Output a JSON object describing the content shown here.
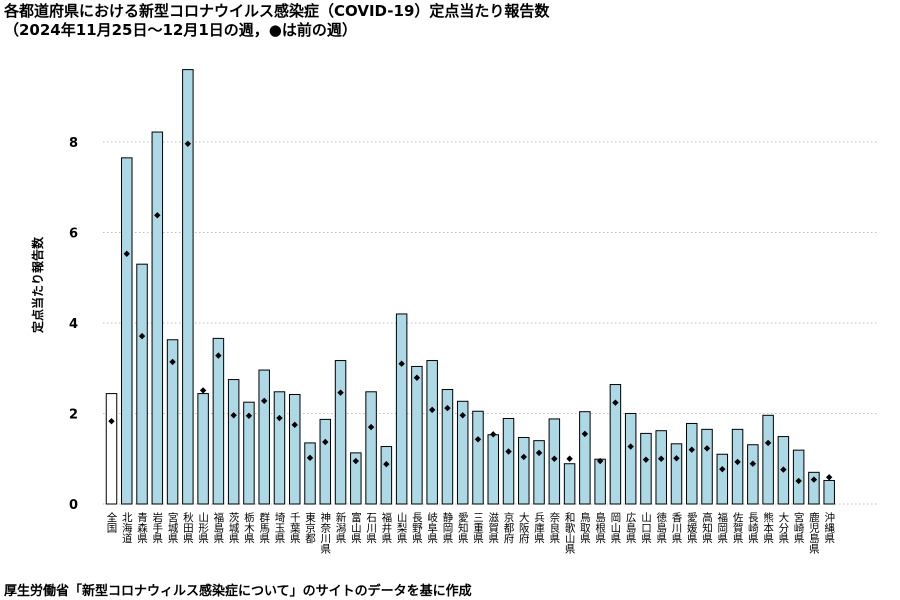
{
  "header": {
    "title": "各都道府県における新型コロナウイルス感染症（COVID-19）定点当たり報告数",
    "subtitle": "（2024年11月25日〜12月1日の週，●は前の週）"
  },
  "footnote": "厚生労働省「新型コロナウィルス感染症について」のサイトのデータを基に作成",
  "chart_data": {
    "type": "bar",
    "title": "各都道府県における新型コロナウイルス感染症（COVID-19）定点当たり報告数",
    "subtitle": "（2024年11月25日〜12月1日の週，●は前の週）",
    "ylabel": "定点当たり報告数",
    "xlabel": "",
    "ylim": [
      0,
      9.8
    ],
    "yticks": [
      0,
      2,
      4,
      6,
      8
    ],
    "grid": "horizontal-dotted",
    "categories": [
      "全国",
      "北海道",
      "青森県",
      "岩手県",
      "宮城県",
      "秋田県",
      "山形県",
      "福島県",
      "茨城県",
      "栃木県",
      "群馬県",
      "埼玉県",
      "千葉県",
      "東京都",
      "神奈川県",
      "新潟県",
      "富山県",
      "石川県",
      "福井県",
      "山梨県",
      "長野県",
      "岐阜県",
      "静岡県",
      "愛知県",
      "三重県",
      "滋賀県",
      "京都府",
      "大阪府",
      "兵庫県",
      "奈良県",
      "和歌山県",
      "鳥取県",
      "島根県",
      "岡山県",
      "広島県",
      "山口県",
      "徳島県",
      "香川県",
      "愛媛県",
      "高知県",
      "福岡県",
      "佐賀県",
      "長崎県",
      "熊本県",
      "大分県",
      "宮崎県",
      "鹿児島県",
      "沖縄県"
    ],
    "series": [
      {
        "values": [
          2.44,
          7.65,
          5.3,
          8.22,
          3.63,
          9.6,
          2.44,
          3.66,
          2.75,
          2.25,
          2.96,
          2.48,
          2.42,
          1.35,
          1.87,
          3.17,
          1.13,
          2.48,
          1.27,
          4.2,
          3.04,
          3.17,
          2.53,
          2.27,
          2.05,
          1.53,
          1.89,
          1.47,
          1.4,
          1.88,
          0.89,
          2.04,
          0.99,
          2.64,
          2.0,
          1.56,
          1.62,
          1.33,
          1.78,
          1.65,
          1.1,
          1.65,
          1.31,
          1.96,
          1.49,
          1.19,
          0.7,
          0.52
        ]
      },
      {
        "name": "前の週",
        "values": [
          1.83,
          5.53,
          3.71,
          6.38,
          3.14,
          7.96,
          2.51,
          3.28,
          1.96,
          1.95,
          2.28,
          1.9,
          1.75,
          1.02,
          1.37,
          2.46,
          0.95,
          1.7,
          0.88,
          3.1,
          2.79,
          2.08,
          2.12,
          1.96,
          1.43,
          1.54,
          1.16,
          1.04,
          1.13,
          1.0,
          1.0,
          1.55,
          0.95,
          2.24,
          1.27,
          0.98,
          1.0,
          1.01,
          1.2,
          1.23,
          0.77,
          0.93,
          0.89,
          1.35,
          0.76,
          0.51,
          0.54,
          0.59
        ]
      }
    ],
    "colors": {
      "bar": "#add8e6",
      "national_bar": "#ffffff",
      "outline": "#000000",
      "marker": "#000000",
      "grid": "#bfbfbf"
    }
  }
}
